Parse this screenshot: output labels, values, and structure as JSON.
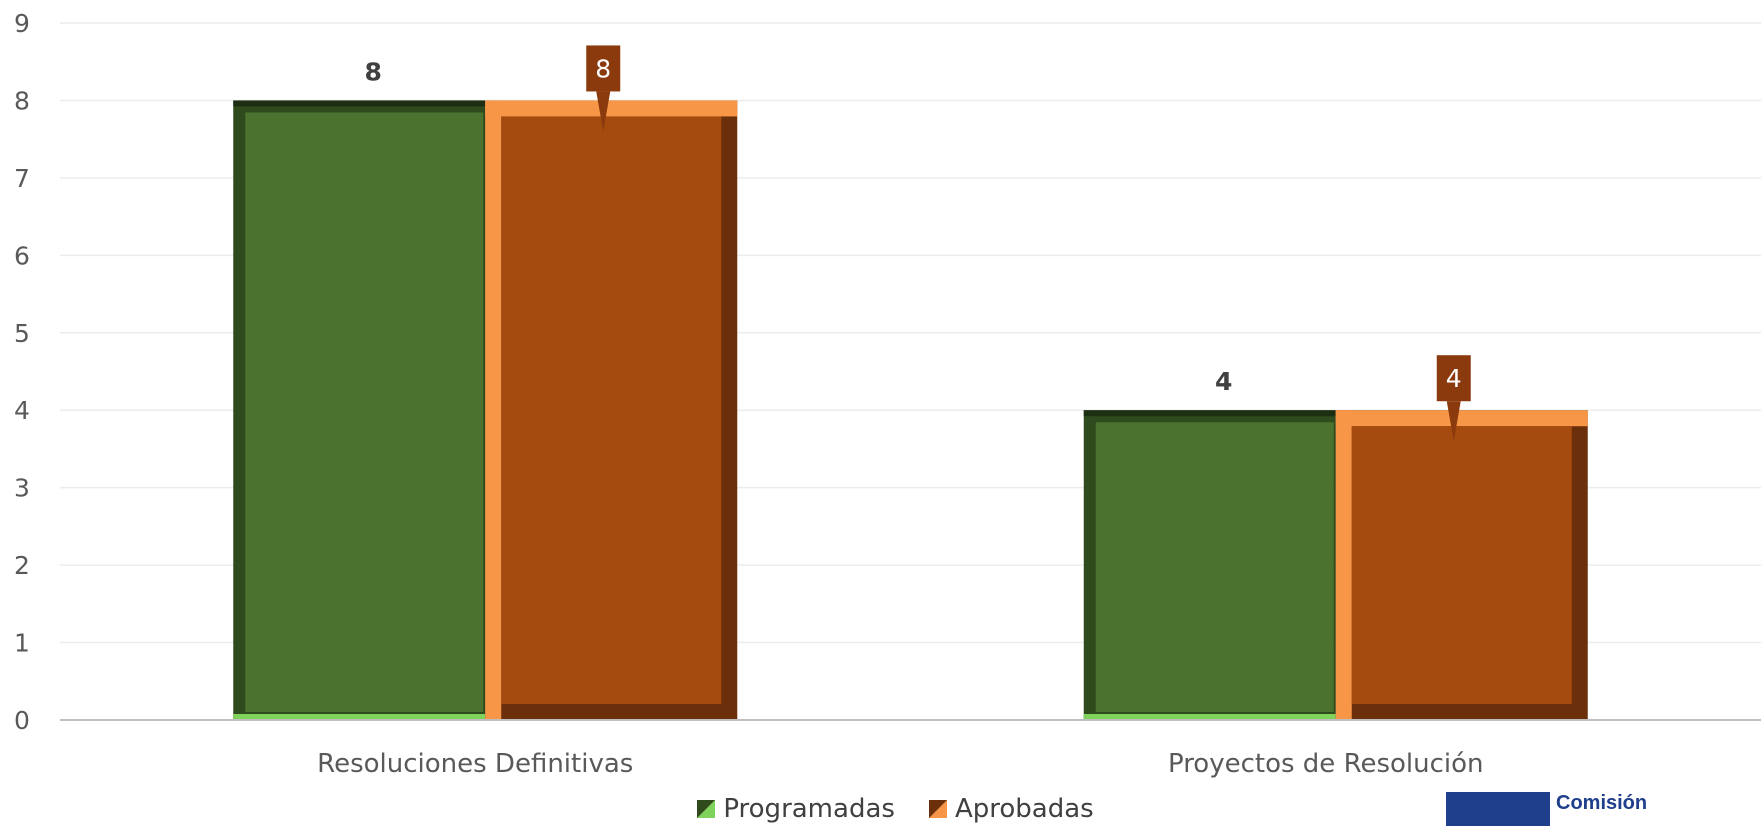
{
  "chart_data": {
    "type": "bar",
    "categories": [
      "Resoluciones Definitivas",
      "Proyectos de Resolución"
    ],
    "series": [
      {
        "name": "Programadas",
        "values": [
          8,
          4
        ],
        "color": "#4b722f",
        "label_style": "plain"
      },
      {
        "name": "Aprobadas",
        "values": [
          8,
          4
        ],
        "color": "#a54b10",
        "label_style": "callout"
      }
    ],
    "ylim": [
      0,
      9
    ],
    "yticks": [
      0,
      1,
      2,
      3,
      4,
      5,
      6,
      7,
      8,
      9
    ],
    "grid": true,
    "legend": "bottom"
  },
  "logo": {
    "text": "Comisión"
  }
}
